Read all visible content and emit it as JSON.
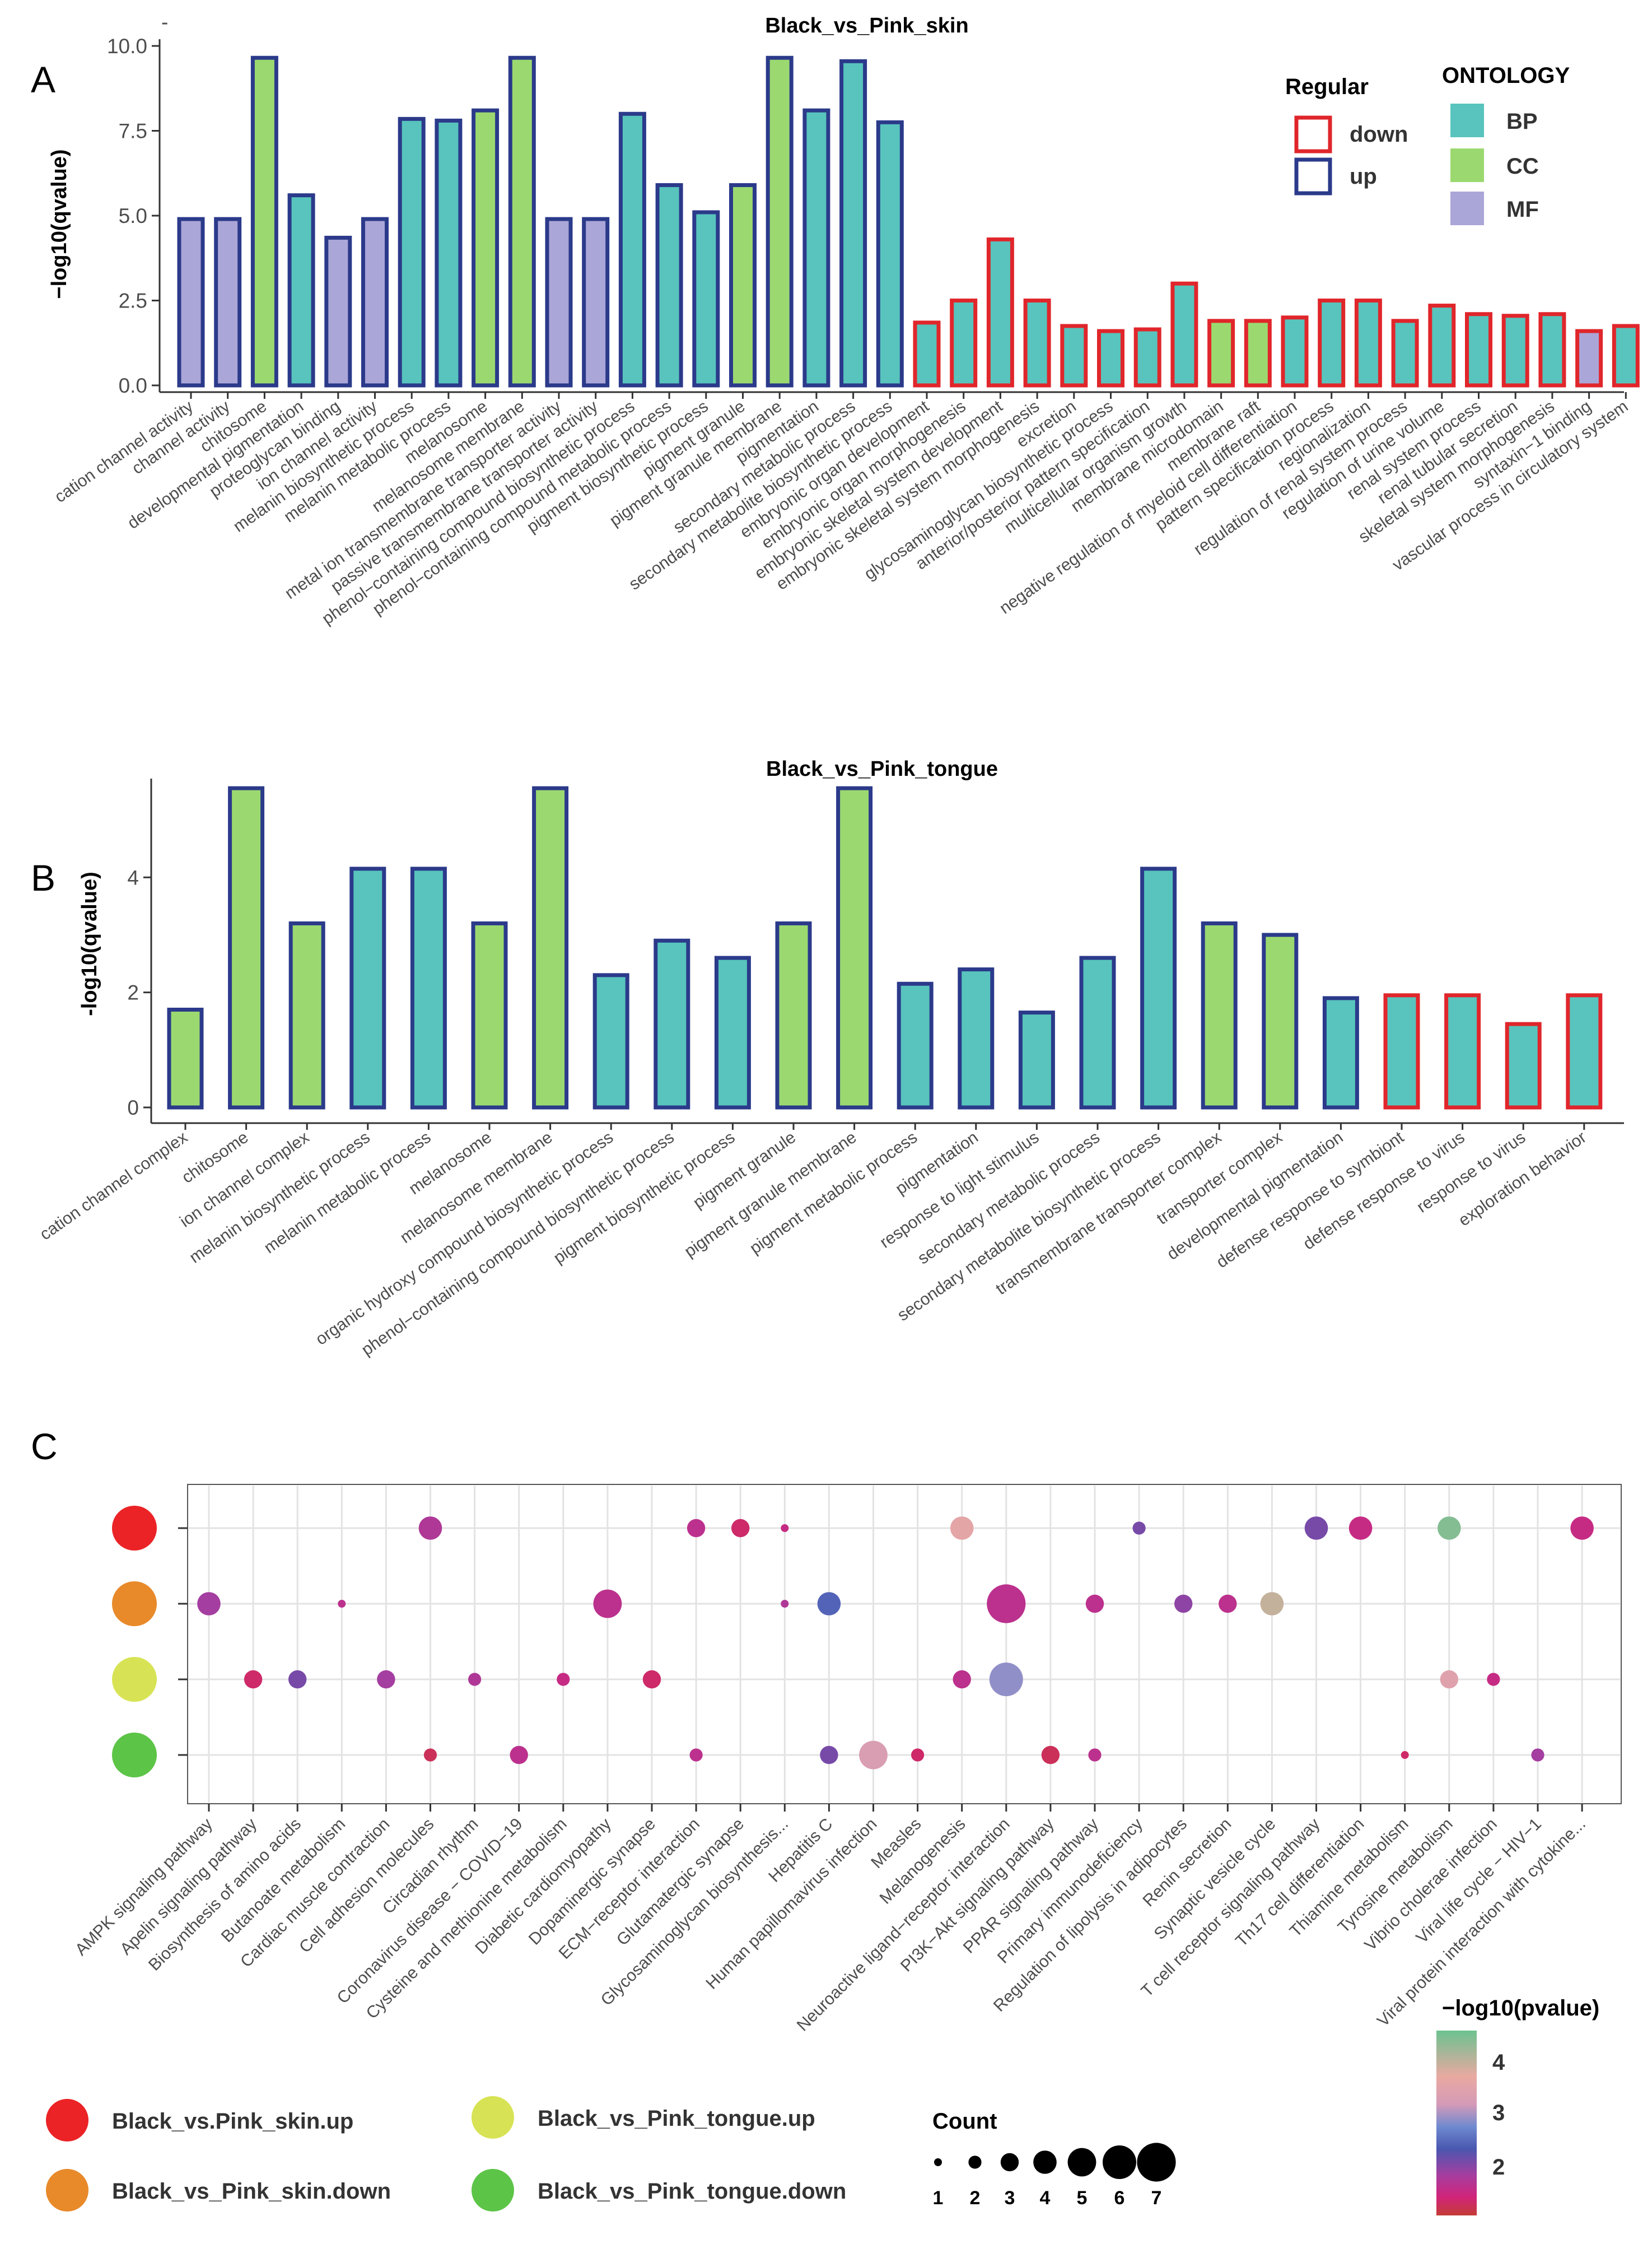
{
  "palette": {
    "BP": "#58c4bd",
    "CC": "#9bd970",
    "MF": "#aba6d8",
    "up": "#2b3a8a",
    "down": "#e0262b"
  },
  "panel_labels": {
    "a": "A",
    "b": "B",
    "c": "C"
  },
  "minor_mark": "-",
  "legend_a": {
    "regular_title": "Regular",
    "down_label": "down",
    "up_label": "up",
    "ontology_title": "ONTOLOGY",
    "bp_label": "BP",
    "cc_label": "CC",
    "mf_label": "MF"
  },
  "legend_c": {
    "skin_up": "Black_vs.Pink_skin.up",
    "skin_down": "Black_vs_Pink_skin.down",
    "tongue_up": "Black_vs_Pink_tongue.up",
    "tongue_down": "Black_vs_Pink_tongue.down",
    "count_title": "Count",
    "count_values": [
      "1",
      "2",
      "3",
      "4",
      "5",
      "6",
      "7"
    ],
    "color_title": "−log10(pvalue)",
    "color_ticks": [
      "4",
      "3",
      "2"
    ]
  },
  "chart_data": [
    {
      "type": "bar",
      "title": "Black_vs_Pink_skin",
      "xlabel": "",
      "ylabel": "−log10(qvalue)",
      "ylim": [
        0,
        10
      ],
      "yticks": [
        "0.0",
        "2.5",
        "5.0",
        "7.5",
        "10.0"
      ],
      "categories": [
        "cation channel activity",
        "channel activity",
        "chitosome",
        "developmental pigmentation",
        "proteoglycan binding",
        "ion channel activity",
        "melanin biosynthetic process",
        "melanin metabolic process",
        "melanosome",
        "melanosome membrane",
        "metal ion transmembrane transporter activity",
        "passive transmembrane transporter activity",
        "phenol−containing compound biosynthetic process",
        "phenol−containing compound metabolic process",
        "pigment biosynthetic process",
        "pigment granule",
        "pigment granule membrane",
        "pigmentation",
        "secondary metabolic process",
        "secondary metabolite biosynthetic process",
        "embryonic organ development",
        "embryonic organ morphogenesis",
        "embryonic skeletal system development",
        "embryonic skeletal system morphogenesis",
        "excretion",
        "glycosaminoglycan biosynthetic process",
        "anterior/posterior pattern specification",
        "multicellular organism growth",
        "membrane microdomain",
        "membrane raft",
        "negative regulation of myeloid cell differentiation",
        "pattern specification process",
        "regionalization",
        "regulation of renal system process",
        "regulation of urine volume",
        "renal system process",
        "renal tubular secretion",
        "skeletal system morphogenesis",
        "syntaxin−1 binding",
        "vascular process in circulatory system"
      ],
      "values": [
        4.9,
        4.9,
        9.65,
        5.6,
        4.35,
        4.9,
        7.85,
        7.8,
        8.1,
        9.65,
        4.9,
        4.9,
        8.0,
        5.9,
        5.1,
        5.9,
        9.65,
        8.1,
        9.55,
        7.75,
        1.85,
        2.5,
        4.3,
        2.5,
        1.75,
        1.6,
        1.65,
        3.0,
        1.9,
        1.9,
        2.0,
        2.5,
        2.5,
        1.9,
        2.35,
        2.1,
        2.05,
        2.1,
        1.6,
        1.75
      ],
      "ontology": [
        "MF",
        "MF",
        "CC",
        "BP",
        "MF",
        "MF",
        "BP",
        "BP",
        "CC",
        "CC",
        "MF",
        "MF",
        "BP",
        "BP",
        "BP",
        "CC",
        "CC",
        "BP",
        "BP",
        "BP",
        "BP",
        "BP",
        "BP",
        "BP",
        "BP",
        "BP",
        "BP",
        "BP",
        "CC",
        "CC",
        "BP",
        "BP",
        "BP",
        "BP",
        "BP",
        "BP",
        "BP",
        "BP",
        "MF",
        "BP"
      ],
      "regular": [
        "up",
        "up",
        "up",
        "up",
        "up",
        "up",
        "up",
        "up",
        "up",
        "up",
        "up",
        "up",
        "up",
        "up",
        "up",
        "up",
        "up",
        "up",
        "up",
        "up",
        "down",
        "down",
        "down",
        "down",
        "down",
        "down",
        "down",
        "down",
        "down",
        "down",
        "down",
        "down",
        "down",
        "down",
        "down",
        "down",
        "down",
        "down",
        "down",
        "down"
      ]
    },
    {
      "type": "bar",
      "title": "Black_vs_Pink_tongue",
      "xlabel": "",
      "ylabel": "-log10(qvalue)",
      "ylim": [
        0,
        5.6
      ],
      "yticks": [
        "0",
        "2",
        "4"
      ],
      "categories": [
        "cation channel complex",
        "chitosome",
        "ion channel complex",
        "melanin biosynthetic process",
        "melanin metabolic process",
        "melanosome",
        "melanosome membrane",
        "organic hydroxy compound biosynthetic process",
        "phenol−containing compound biosynthetic process",
        "pigment biosynthetic process",
        "pigment granule",
        "pigment granule membrane",
        "pigment metabolic process",
        "pigmentation",
        "response to light stimulus",
        "secondary metabolic process",
        "secondary metabolite biosynthetic process",
        "transmembrane transporter complex",
        "transporter complex",
        "developmental pigmentation",
        "defense response to symbiont",
        "defense response to virus",
        "response to virus",
        "exploration behavior"
      ],
      "values": [
        1.7,
        5.55,
        3.2,
        4.15,
        4.15,
        3.2,
        5.55,
        2.3,
        2.9,
        2.6,
        3.2,
        5.55,
        2.15,
        2.4,
        1.65,
        2.6,
        4.15,
        3.2,
        3.0,
        1.9,
        1.95,
        1.95,
        1.45,
        1.95
      ],
      "ontology": [
        "CC",
        "CC",
        "CC",
        "BP",
        "BP",
        "CC",
        "CC",
        "BP",
        "BP",
        "BP",
        "CC",
        "CC",
        "BP",
        "BP",
        "BP",
        "BP",
        "BP",
        "CC",
        "CC",
        "BP",
        "BP",
        "BP",
        "BP",
        "BP"
      ],
      "regular": [
        "up",
        "up",
        "up",
        "up",
        "up",
        "up",
        "up",
        "up",
        "up",
        "up",
        "up",
        "up",
        "up",
        "up",
        "up",
        "up",
        "up",
        "up",
        "up",
        "up",
        "down",
        "down",
        "down",
        "down"
      ]
    },
    {
      "type": "scatter",
      "title": "",
      "xlabel": "",
      "ylabel": "",
      "categories": [
        "AMPK signaling pathway",
        "Apelin signaling pathway",
        "Biosynthesis of amino acids",
        "Butanoate metabolism",
        "Cardiac muscle contraction",
        "Cell adhesion molecules",
        "Circadian rhythm",
        "Coronavirus disease − COVID−19",
        "Cysteine and methionine metabolism",
        "Diabetic cardiomyopathy",
        "Dopaminergic synapse",
        "ECM−receptor interaction",
        "Glutamatergic synapse",
        "Glycosaminoglycan biosynthesis...",
        "Hepatitis C",
        "Human papillomavirus infection",
        "Measles",
        "Melanogenesis",
        "Neuroactive ligand−receptor interaction",
        "PI3K−Akt signaling pathway",
        "PPAR signaling pathway",
        "Primary immunodeficiency",
        "Regulation of lipolysis in adipocytes",
        "Renin secretion",
        "Synaptic vesicle cycle",
        "T cell receptor signaling pathway",
        "Th17 cell differentiation",
        "Thiamine metabolism",
        "Tyrosine metabolism",
        "Vibrio cholerae infection",
        "Viral life cycle − HIV−1",
        "Viral protein interaction with cytokine..."
      ],
      "groups": [
        "Black_vs.Pink_skin.up",
        "Black_vs_Pink_skin.down",
        "Black_vs_Pink_tongue.up",
        "Black_vs_Pink_tongue.down"
      ],
      "color_label": "−log10(pvalue)",
      "color_range": [
        1.3,
        4.6
      ],
      "size_label": "Count",
      "size_range": [
        1,
        7
      ],
      "points": [
        {
          "group": "Black_vs.Pink_skin.up",
          "term": "Cell adhesion molecules",
          "count": 4,
          "log10p": 2.0
        },
        {
          "group": "Black_vs.Pink_skin.up",
          "term": "ECM−receptor interaction",
          "count": 3,
          "log10p": 1.9
        },
        {
          "group": "Black_vs.Pink_skin.up",
          "term": "Glutamatergic synapse",
          "count": 3,
          "log10p": 1.6
        },
        {
          "group": "Black_vs.Pink_skin.up",
          "term": "Glycosaminoglycan biosynthesis...",
          "count": 1,
          "log10p": 1.8
        },
        {
          "group": "Black_vs.Pink_skin.up",
          "term": "Melanogenesis",
          "count": 4,
          "log10p": 3.5
        },
        {
          "group": "Black_vs.Pink_skin.up",
          "term": "Primary immunodeficiency",
          "count": 2,
          "log10p": 2.3
        },
        {
          "group": "Black_vs.Pink_skin.up",
          "term": "T cell receptor signaling pathway",
          "count": 4,
          "log10p": 2.3
        },
        {
          "group": "Black_vs.Pink_skin.up",
          "term": "Th17 cell differentiation",
          "count": 4,
          "log10p": 1.8
        },
        {
          "group": "Black_vs.Pink_skin.up",
          "term": "Tyrosine metabolism",
          "count": 4,
          "log10p": 4.4
        },
        {
          "group": "Black_vs.Pink_skin.up",
          "term": "Viral protein interaction with cytokine...",
          "count": 4,
          "log10p": 1.8
        },
        {
          "group": "Black_vs_Pink_skin.down",
          "term": "AMPK signaling pathway",
          "count": 4,
          "log10p": 2.1
        },
        {
          "group": "Black_vs_Pink_skin.down",
          "term": "Butanoate metabolism",
          "count": 1,
          "log10p": 1.9
        },
        {
          "group": "Black_vs_Pink_skin.down",
          "term": "Diabetic cardiomyopathy",
          "count": 5,
          "log10p": 1.9
        },
        {
          "group": "Black_vs_Pink_skin.down",
          "term": "Glycosaminoglycan biosynthesis...",
          "count": 1,
          "log10p": 2.0
        },
        {
          "group": "Black_vs_Pink_skin.down",
          "term": "Hepatitis C",
          "count": 4,
          "log10p": 2.6
        },
        {
          "group": "Black_vs_Pink_skin.down",
          "term": "Neuroactive ligand−receptor interaction",
          "count": 7,
          "log10p": 1.9
        },
        {
          "group": "Black_vs_Pink_skin.down",
          "term": "PPAR signaling pathway",
          "count": 3,
          "log10p": 1.9
        },
        {
          "group": "Black_vs_Pink_skin.down",
          "term": "Regulation of lipolysis in adipocytes",
          "count": 3,
          "log10p": 2.2
        },
        {
          "group": "Black_vs_Pink_skin.down",
          "term": "Renin secretion",
          "count": 3,
          "log10p": 1.9
        },
        {
          "group": "Black_vs_Pink_skin.down",
          "term": "Synaptic vesicle cycle",
          "count": 4,
          "log10p": 3.9
        },
        {
          "group": "Black_vs_Pink_tongue.up",
          "term": "Apelin signaling pathway",
          "count": 3,
          "log10p": 1.6
        },
        {
          "group": "Black_vs_Pink_tongue.up",
          "term": "Biosynthesis of amino acids",
          "count": 3,
          "log10p": 2.3
        },
        {
          "group": "Black_vs_Pink_tongue.up",
          "term": "Cardiac muscle contraction",
          "count": 3,
          "log10p": 2.1
        },
        {
          "group": "Black_vs_Pink_tongue.up",
          "term": "Circadian rhythm",
          "count": 2,
          "log10p": 2.0
        },
        {
          "group": "Black_vs_Pink_tongue.up",
          "term": "Cysteine and methionine metabolism",
          "count": 2,
          "log10p": 1.8
        },
        {
          "group": "Black_vs_Pink_tongue.up",
          "term": "Dopaminergic synapse",
          "count": 3,
          "log10p": 1.6
        },
        {
          "group": "Black_vs_Pink_tongue.up",
          "term": "Melanogenesis",
          "count": 3,
          "log10p": 1.9
        },
        {
          "group": "Black_vs_Pink_tongue.up",
          "term": "Neuroactive ligand−receptor interaction",
          "count": 6,
          "log10p": 3.0
        },
        {
          "group": "Black_vs_Pink_tongue.up",
          "term": "Tyrosine metabolism",
          "count": 3,
          "log10p": 3.4
        },
        {
          "group": "Black_vs_Pink_tongue.up",
          "term": "Vibrio cholerae infection",
          "count": 2,
          "log10p": 1.8
        },
        {
          "group": "Black_vs_Pink_tongue.down",
          "term": "Cell adhesion molecules",
          "count": 2,
          "log10p": 1.5
        },
        {
          "group": "Black_vs_Pink_tongue.down",
          "term": "Coronavirus disease − COVID−19",
          "count": 3,
          "log10p": 1.9
        },
        {
          "group": "Black_vs_Pink_tongue.down",
          "term": "ECM−receptor interaction",
          "count": 2,
          "log10p": 1.9
        },
        {
          "group": "Black_vs_Pink_tongue.down",
          "term": "Hepatitis C",
          "count": 3,
          "log10p": 2.3
        },
        {
          "group": "Black_vs_Pink_tongue.down",
          "term": "Human papillomavirus infection",
          "count": 5,
          "log10p": 3.3
        },
        {
          "group": "Black_vs_Pink_tongue.down",
          "term": "Measles",
          "count": 2,
          "log10p": 1.6
        },
        {
          "group": "Black_vs_Pink_tongue.down",
          "term": "PI3K−Akt signaling pathway",
          "count": 3,
          "log10p": 1.5
        },
        {
          "group": "Black_vs_Pink_tongue.down",
          "term": "PPAR signaling pathway",
          "count": 2,
          "log10p": 1.9
        },
        {
          "group": "Black_vs_Pink_tongue.down",
          "term": "Thiamine metabolism",
          "count": 1,
          "log10p": 1.6
        },
        {
          "group": "Black_vs_Pink_tongue.down",
          "term": "Viral life cycle − HIV−1",
          "count": 2,
          "log10p": 2.1
        }
      ]
    }
  ]
}
